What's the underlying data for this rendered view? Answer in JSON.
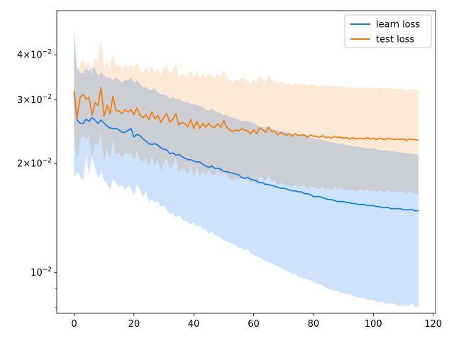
{
  "chart_data": {
    "type": "line",
    "title": "",
    "xlabel": "",
    "ylabel": "",
    "xlim": [
      -5.8,
      120.8
    ],
    "ylim": [
      0.0077,
      0.053
    ],
    "yscale": "log",
    "x_ticks": [
      0,
      20,
      40,
      60,
      80,
      100,
      120
    ],
    "x_tick_labels": [
      "0",
      "20",
      "40",
      "60",
      "80",
      "100",
      "120"
    ],
    "y_major_ticks": [
      0.01,
      0.02,
      0.03,
      0.04
    ],
    "y_tick_labels": [
      "10−2",
      "2×10−2",
      "3×10−2",
      "4×10−2"
    ],
    "y_tick_label_parts": [
      {
        "mant": "",
        "base": "10",
        "exp": "−2"
      },
      {
        "mant": "2×",
        "base": "10",
        "exp": "−2"
      },
      {
        "mant": "3×",
        "base": "10",
        "exp": "−2"
      },
      {
        "mant": "4×",
        "base": "10",
        "exp": "−2"
      }
    ],
    "y_minor_ticks": [
      0.008,
      0.009
    ],
    "grid": false,
    "legend_position": "top-right",
    "series": [
      {
        "name": "learn loss",
        "color": "#1a7fe6",
        "band_color": "#cce3fb",
        "x": [
          0,
          1,
          2,
          3,
          4,
          5,
          6,
          7,
          8,
          9,
          10,
          11,
          12,
          13,
          14,
          15,
          16,
          17,
          18,
          19,
          20,
          21,
          22,
          23,
          24,
          25,
          26,
          27,
          28,
          29,
          30,
          31,
          32,
          33,
          34,
          35,
          36,
          37,
          38,
          39,
          40,
          41,
          42,
          43,
          44,
          45,
          46,
          47,
          48,
          49,
          50,
          51,
          52,
          53,
          54,
          55,
          56,
          57,
          58,
          59,
          60,
          61,
          62,
          63,
          64,
          65,
          66,
          67,
          68,
          69,
          70,
          71,
          72,
          73,
          74,
          75,
          76,
          77,
          78,
          79,
          80,
          81,
          82,
          83,
          84,
          85,
          86,
          87,
          88,
          89,
          90,
          91,
          92,
          93,
          94,
          95,
          96,
          97,
          98,
          99,
          100,
          101,
          102,
          103,
          104,
          105,
          106,
          107,
          108,
          109,
          110,
          111,
          112,
          113,
          114,
          115
        ],
        "values": [
          0.0315,
          0.0264,
          0.0259,
          0.0258,
          0.0265,
          0.0262,
          0.0268,
          0.0264,
          0.0258,
          0.0264,
          0.0259,
          0.0254,
          0.0251,
          0.025,
          0.025,
          0.0248,
          0.0244,
          0.0244,
          0.0247,
          0.025,
          0.0237,
          0.0241,
          0.0239,
          0.0234,
          0.0231,
          0.0227,
          0.0226,
          0.0227,
          0.0225,
          0.0221,
          0.0219,
          0.0218,
          0.0213,
          0.0214,
          0.0211,
          0.0212,
          0.0209,
          0.0207,
          0.0205,
          0.0205,
          0.0203,
          0.0202,
          0.0202,
          0.0199,
          0.0197,
          0.0195,
          0.0197,
          0.0194,
          0.0194,
          0.0193,
          0.019,
          0.019,
          0.0189,
          0.0188,
          0.0187,
          0.0186,
          0.0183,
          0.0182,
          0.0183,
          0.0181,
          0.018,
          0.0179,
          0.0177,
          0.0177,
          0.0175,
          0.0175,
          0.0174,
          0.0173,
          0.0172,
          0.0171,
          0.0171,
          0.017,
          0.0169,
          0.0168,
          0.0168,
          0.0167,
          0.0167,
          0.0165,
          0.0165,
          0.0164,
          0.0162,
          0.0162,
          0.0162,
          0.0161,
          0.016,
          0.0159,
          0.0159,
          0.0158,
          0.0157,
          0.0157,
          0.0157,
          0.0156,
          0.0156,
          0.0155,
          0.0155,
          0.0154,
          0.0154,
          0.0154,
          0.0153,
          0.0153,
          0.0153,
          0.0152,
          0.0152,
          0.0151,
          0.0151,
          0.0151,
          0.015,
          0.015,
          0.015,
          0.015,
          0.0149,
          0.0149,
          0.0149,
          0.0149,
          0.0148,
          0.0148
        ],
        "upper": [
          0.046,
          0.037,
          0.0355,
          0.0355,
          0.0365,
          0.036,
          0.037,
          0.0365,
          0.035,
          0.0358,
          0.035,
          0.0345,
          0.0345,
          0.034,
          0.0345,
          0.034,
          0.0335,
          0.034,
          0.034,
          0.0345,
          0.0335,
          0.034,
          0.0332,
          0.0325,
          0.0325,
          0.032,
          0.032,
          0.0322,
          0.0315,
          0.031,
          0.031,
          0.0308,
          0.0302,
          0.0305,
          0.03,
          0.0302,
          0.0298,
          0.0295,
          0.0295,
          0.0292,
          0.0292,
          0.0291,
          0.0288,
          0.0286,
          0.0282,
          0.028,
          0.0283,
          0.0279,
          0.0278,
          0.0276,
          0.0272,
          0.0272,
          0.027,
          0.0268,
          0.0266,
          0.0265,
          0.0262,
          0.0262,
          0.0262,
          0.026,
          0.0258,
          0.0256,
          0.0253,
          0.0252,
          0.0252,
          0.0251,
          0.025,
          0.0248,
          0.0247,
          0.0245,
          0.0245,
          0.0244,
          0.0243,
          0.0241,
          0.0241,
          0.024,
          0.024,
          0.0238,
          0.0237,
          0.0236,
          0.0234,
          0.0233,
          0.0233,
          0.0232,
          0.0231,
          0.023,
          0.0229,
          0.0228,
          0.0227,
          0.0227,
          0.0226,
          0.0225,
          0.0224,
          0.0223,
          0.0223,
          0.0222,
          0.0222,
          0.0221,
          0.022,
          0.022,
          0.022,
          0.0219,
          0.0218,
          0.0217,
          0.0217,
          0.0217,
          0.0216,
          0.0216,
          0.0215,
          0.0215,
          0.0214,
          0.0214,
          0.0213,
          0.0213,
          0.0212,
          0.0211
        ],
        "lower": [
          0.0185,
          0.019,
          0.0185,
          0.018,
          0.0215,
          0.0188,
          0.021,
          0.0196,
          0.0182,
          0.019,
          0.0181,
          0.0176,
          0.017,
          0.0182,
          0.0177,
          0.0172,
          0.0175,
          0.0169,
          0.0174,
          0.0172,
          0.0164,
          0.0175,
          0.017,
          0.0162,
          0.0168,
          0.0157,
          0.0159,
          0.0156,
          0.0158,
          0.0152,
          0.0153,
          0.0149,
          0.0145,
          0.0146,
          0.0142,
          0.0144,
          0.0141,
          0.0139,
          0.0138,
          0.0136,
          0.0138,
          0.0134,
          0.0135,
          0.0132,
          0.0132,
          0.0128,
          0.013,
          0.0127,
          0.0126,
          0.0125,
          0.0123,
          0.0122,
          0.0121,
          0.012,
          0.0119,
          0.0117,
          0.0117,
          0.0115,
          0.0116,
          0.0113,
          0.0112,
          0.0111,
          0.011,
          0.0109,
          0.0107,
          0.0107,
          0.0106,
          0.0105,
          0.0104,
          0.0103,
          0.0102,
          0.0101,
          0.01,
          0.0099,
          0.0099,
          0.0097,
          0.0097,
          0.0096,
          0.0096,
          0.0095,
          0.0094,
          0.0093,
          0.0093,
          0.0092,
          0.0091,
          0.009,
          0.009,
          0.0089,
          0.0089,
          0.0088,
          0.0088,
          0.0087,
          0.0087,
          0.0086,
          0.0086,
          0.0085,
          0.0085,
          0.0085,
          0.0084,
          0.0084,
          0.0084,
          0.0083,
          0.0083,
          0.0083,
          0.0082,
          0.0082,
          0.0082,
          0.0082,
          0.0081,
          0.0081,
          0.0081,
          0.0081,
          0.0081,
          0.0082,
          0.008,
          0.0081
        ]
      },
      {
        "name": "test loss",
        "color": "#f47f11",
        "band_color": "#fee2c9",
        "x": [
          0,
          1,
          2,
          3,
          4,
          5,
          6,
          7,
          8,
          9,
          10,
          11,
          12,
          13,
          14,
          15,
          16,
          17,
          18,
          19,
          20,
          21,
          22,
          23,
          24,
          25,
          26,
          27,
          28,
          29,
          30,
          31,
          32,
          33,
          34,
          35,
          36,
          37,
          38,
          39,
          40,
          41,
          42,
          43,
          44,
          45,
          46,
          47,
          48,
          49,
          50,
          51,
          52,
          53,
          54,
          55,
          56,
          57,
          58,
          59,
          60,
          61,
          62,
          63,
          64,
          65,
          66,
          67,
          68,
          69,
          70,
          71,
          72,
          73,
          74,
          75,
          76,
          77,
          78,
          79,
          80,
          81,
          82,
          83,
          84,
          85,
          86,
          87,
          88,
          89,
          90,
          91,
          92,
          93,
          94,
          95,
          96,
          97,
          98,
          99,
          100,
          101,
          102,
          103,
          104,
          105,
          106,
          107,
          108,
          109,
          110,
          111,
          112,
          113,
          114,
          115
        ],
        "values": [
          0.0318,
          0.0267,
          0.0305,
          0.031,
          0.0302,
          0.0305,
          0.0272,
          0.0295,
          0.029,
          0.0325,
          0.027,
          0.029,
          0.0275,
          0.0307,
          0.028,
          0.028,
          0.0275,
          0.0282,
          0.0278,
          0.0282,
          0.0273,
          0.0285,
          0.0272,
          0.0268,
          0.0273,
          0.0265,
          0.0278,
          0.0266,
          0.0272,
          0.026,
          0.0269,
          0.0275,
          0.026,
          0.0265,
          0.0275,
          0.0256,
          0.026,
          0.0258,
          0.0253,
          0.0265,
          0.025,
          0.0262,
          0.025,
          0.0258,
          0.0252,
          0.0258,
          0.0253,
          0.0252,
          0.0258,
          0.0252,
          0.0263,
          0.0252,
          0.0248,
          0.0245,
          0.0248,
          0.0246,
          0.025,
          0.0248,
          0.0246,
          0.0242,
          0.0248,
          0.0242,
          0.0251,
          0.0248,
          0.0244,
          0.0252,
          0.0245,
          0.0246,
          0.024,
          0.0244,
          0.0241,
          0.024,
          0.0241,
          0.0238,
          0.0242,
          0.0239,
          0.024,
          0.024,
          0.0237,
          0.024,
          0.0238,
          0.0238,
          0.0236,
          0.0239,
          0.0236,
          0.0237,
          0.0235,
          0.0238,
          0.0236,
          0.0237,
          0.0235,
          0.0236,
          0.0234,
          0.0236,
          0.0234,
          0.0235,
          0.0235,
          0.0234,
          0.0236,
          0.0234,
          0.0235,
          0.0233,
          0.0235,
          0.0234,
          0.0233,
          0.0235,
          0.0234,
          0.0233,
          0.0234,
          0.0233,
          0.0234,
          0.0232,
          0.0234,
          0.0233,
          0.0233,
          0.0232
        ],
        "upper": [
          0.042,
          0.035,
          0.038,
          0.0385,
          0.0375,
          0.038,
          0.0345,
          0.039,
          0.038,
          0.0435,
          0.0365,
          0.038,
          0.0365,
          0.04,
          0.0372,
          0.0375,
          0.0365,
          0.0375,
          0.037,
          0.0375,
          0.0365,
          0.038,
          0.0362,
          0.0355,
          0.0368,
          0.0355,
          0.0372,
          0.0355,
          0.0365,
          0.035,
          0.0368,
          0.0372,
          0.0352,
          0.0362,
          0.0375,
          0.0345,
          0.0355,
          0.035,
          0.0345,
          0.0362,
          0.0342,
          0.036,
          0.0342,
          0.0355,
          0.0345,
          0.0355,
          0.0348,
          0.0345,
          0.0355,
          0.0345,
          0.0362,
          0.0345,
          0.034,
          0.0335,
          0.0342,
          0.0338,
          0.0345,
          0.0342,
          0.0338,
          0.0332,
          0.0342,
          0.0332,
          0.0348,
          0.0342,
          0.0335,
          0.035,
          0.0338,
          0.034,
          0.033,
          0.0338,
          0.0332,
          0.033,
          0.0333,
          0.0328,
          0.0335,
          0.033,
          0.0332,
          0.0332,
          0.0328,
          0.0332,
          0.033,
          0.0329,
          0.0325,
          0.033,
          0.0326,
          0.0328,
          0.0324,
          0.0329,
          0.0326,
          0.0328,
          0.0324,
          0.0326,
          0.0322,
          0.0326,
          0.0322,
          0.0324,
          0.0324,
          0.0322,
          0.0326,
          0.0322,
          0.0324,
          0.0321,
          0.0324,
          0.0322,
          0.0321,
          0.0324,
          0.0322,
          0.032,
          0.0322,
          0.0321,
          0.0322,
          0.0318,
          0.0322,
          0.032,
          0.032,
          0.0318
        ],
        "lower": [
          0.0242,
          0.0205,
          0.0235,
          0.024,
          0.0235,
          0.0238,
          0.021,
          0.0228,
          0.0225,
          0.0248,
          0.0205,
          0.0222,
          0.021,
          0.0235,
          0.0212,
          0.0215,
          0.0208,
          0.0215,
          0.0212,
          0.0215,
          0.0205,
          0.0218,
          0.0205,
          0.0202,
          0.0208,
          0.0198,
          0.0212,
          0.0198,
          0.0205,
          0.0192,
          0.0202,
          0.0208,
          0.0193,
          0.0198,
          0.0208,
          0.019,
          0.0194,
          0.0192,
          0.0188,
          0.0198,
          0.0184,
          0.0196,
          0.0184,
          0.0192,
          0.0185,
          0.0192,
          0.0188,
          0.0186,
          0.0192,
          0.0186,
          0.0196,
          0.0186,
          0.0182,
          0.0179,
          0.0182,
          0.018,
          0.0184,
          0.0182,
          0.018,
          0.0176,
          0.0182,
          0.0176,
          0.0185,
          0.0182,
          0.0178,
          0.0186,
          0.0179,
          0.018,
          0.0174,
          0.0178,
          0.0175,
          0.0174,
          0.0175,
          0.0172,
          0.0176,
          0.0173,
          0.0174,
          0.0174,
          0.0171,
          0.0174,
          0.0172,
          0.0172,
          0.017,
          0.0173,
          0.017,
          0.0171,
          0.0169,
          0.0172,
          0.017,
          0.0171,
          0.0169,
          0.017,
          0.0168,
          0.017,
          0.0168,
          0.0169,
          0.0169,
          0.0168,
          0.017,
          0.0168,
          0.0169,
          0.0167,
          0.0169,
          0.0168,
          0.0167,
          0.0169,
          0.0168,
          0.0166,
          0.0168,
          0.0167,
          0.0168,
          0.0165,
          0.0168,
          0.0166,
          0.0166,
          0.0165
        ]
      }
    ]
  }
}
